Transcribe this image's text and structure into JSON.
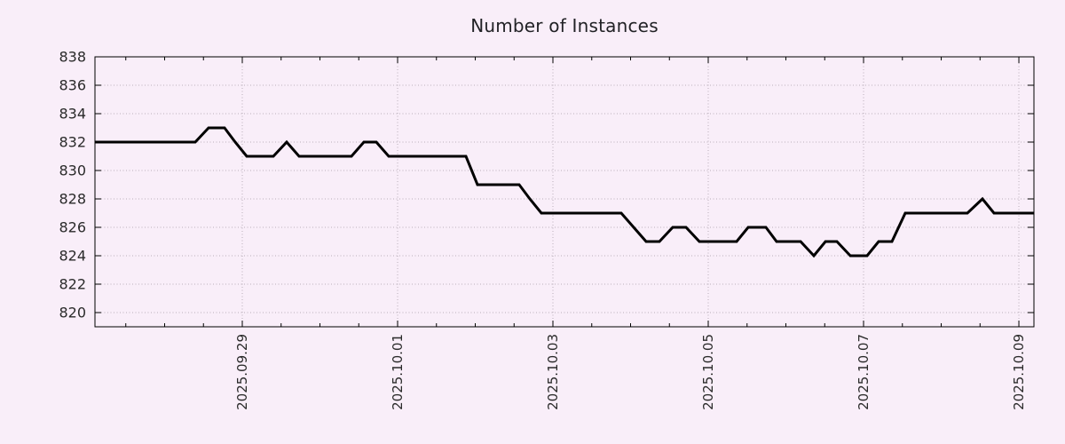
{
  "chart_data": {
    "type": "line",
    "title": "Number of Instances",
    "xlabel": "",
    "ylabel": "",
    "x_unit": "days since 2025-09-29 00:00",
    "x_range": [
      -1.897,
      10.194
    ],
    "ylim": [
      819,
      838
    ],
    "y_ticks": [
      820,
      822,
      824,
      826,
      828,
      830,
      832,
      834,
      836,
      838
    ],
    "x_major_ticks": [
      {
        "d": 0,
        "label": "2025.09.29"
      },
      {
        "d": 2,
        "label": "2025.10.01"
      },
      {
        "d": 4,
        "label": "2025.10.03"
      },
      {
        "d": 6,
        "label": "2025.10.05"
      },
      {
        "d": 8,
        "label": "2025.10.07"
      },
      {
        "d": 10,
        "label": "2025.10.09"
      }
    ],
    "x_minor_interval": 0.5,
    "grid": true,
    "legend": false,
    "series": [
      {
        "name": "instances",
        "color": "#000000",
        "points": [
          [
            -1.897,
            832
          ],
          [
            -0.606,
            832
          ],
          [
            -0.434,
            833
          ],
          [
            -0.229,
            833
          ],
          [
            -0.091,
            832
          ],
          [
            0.057,
            831
          ],
          [
            0.4,
            831
          ],
          [
            0.571,
            832
          ],
          [
            0.731,
            831
          ],
          [
            1.406,
            831
          ],
          [
            1.566,
            832
          ],
          [
            1.726,
            832
          ],
          [
            1.886,
            831
          ],
          [
            2.88,
            831
          ],
          [
            3.029,
            829
          ],
          [
            3.566,
            829
          ],
          [
            3.703,
            828
          ],
          [
            3.851,
            827
          ],
          [
            4.88,
            827
          ],
          [
            5.04,
            826
          ],
          [
            5.2,
            825
          ],
          [
            5.371,
            825
          ],
          [
            5.543,
            826
          ],
          [
            5.714,
            826
          ],
          [
            5.886,
            825
          ],
          [
            6.366,
            825
          ],
          [
            6.514,
            826
          ],
          [
            6.743,
            826
          ],
          [
            6.88,
            825
          ],
          [
            7.189,
            825
          ],
          [
            7.36,
            824
          ],
          [
            7.509,
            825
          ],
          [
            7.657,
            825
          ],
          [
            7.829,
            824
          ],
          [
            8.046,
            824
          ],
          [
            8.194,
            825
          ],
          [
            8.366,
            825
          ],
          [
            8.537,
            827
          ],
          [
            9.337,
            827
          ],
          [
            9.531,
            828
          ],
          [
            9.68,
            827
          ],
          [
            10.194,
            827
          ]
        ]
      }
    ],
    "colors": {
      "background": "#f9eef9",
      "grid": "#b9aeb9",
      "axis": "#000000",
      "tick_label": "#2a2a2a",
      "title": "#222226",
      "line": "#000000"
    }
  }
}
